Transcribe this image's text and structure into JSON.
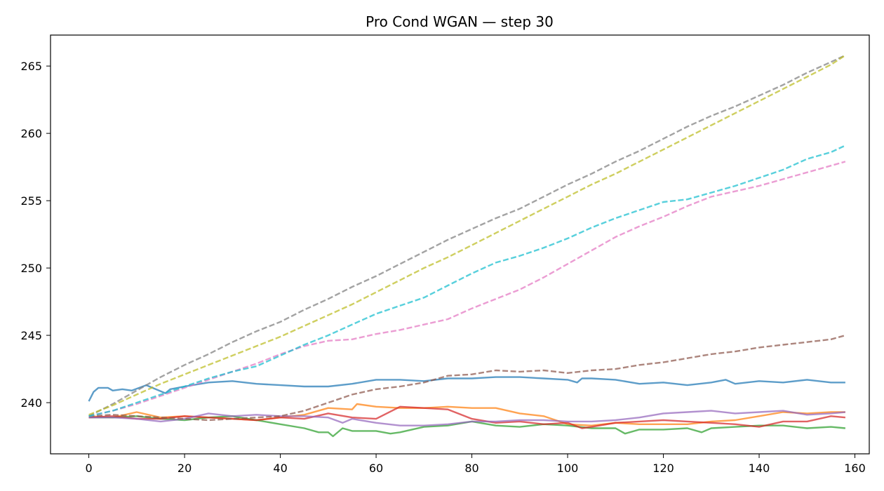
{
  "chart_data": {
    "type": "line",
    "title": "Pro Cond WGAN — step 30",
    "xlabel": "",
    "ylabel": "",
    "xlim": [
      -8,
      163
    ],
    "ylim": [
      236.2,
      267.3
    ],
    "xticks": [
      0,
      20,
      40,
      60,
      80,
      100,
      120,
      140,
      160
    ],
    "yticks": [
      240,
      245,
      250,
      255,
      260,
      265
    ],
    "grid": false,
    "legend": "none",
    "series": [
      {
        "color": "#1f77b4",
        "dash": false,
        "x": [
          0,
          1,
          2,
          4,
          5,
          7,
          9,
          12,
          14,
          16,
          17,
          20,
          25,
          30,
          35,
          40,
          45,
          50,
          55,
          60,
          65,
          70,
          75,
          80,
          85,
          90,
          95,
          100,
          102,
          103,
          105,
          110,
          115,
          120,
          125,
          130,
          133,
          135,
          140,
          145,
          150,
          155,
          158
        ],
        "y": [
          240.1,
          240.8,
          241.1,
          241.1,
          240.9,
          241.0,
          240.9,
          241.3,
          241.0,
          240.7,
          241.0,
          241.2,
          241.5,
          241.6,
          241.4,
          241.3,
          241.2,
          241.2,
          241.4,
          241.7,
          241.7,
          241.6,
          241.8,
          241.8,
          241.9,
          241.9,
          241.8,
          241.7,
          241.5,
          241.8,
          241.8,
          241.7,
          241.4,
          241.5,
          241.3,
          241.5,
          241.7,
          241.4,
          241.6,
          241.5,
          241.7,
          241.5,
          241.5
        ]
      },
      {
        "color": "#ff7f0e",
        "dash": false,
        "x": [
          0,
          5,
          10,
          15,
          20,
          25,
          30,
          35,
          40,
          45,
          50,
          55,
          56,
          60,
          65,
          70,
          75,
          80,
          85,
          90,
          95,
          100,
          105,
          110,
          115,
          120,
          125,
          130,
          135,
          140,
          145,
          150,
          155,
          158
        ],
        "y": [
          239.0,
          238.9,
          239.3,
          238.9,
          239.0,
          238.9,
          238.8,
          238.7,
          238.9,
          239.1,
          239.6,
          239.5,
          239.9,
          239.7,
          239.6,
          239.6,
          239.7,
          239.6,
          239.6,
          239.2,
          239.0,
          238.4,
          238.3,
          238.5,
          238.4,
          238.4,
          238.4,
          238.6,
          238.7,
          239.0,
          239.3,
          239.2,
          239.3,
          239.3
        ]
      },
      {
        "color": "#2ca02c",
        "dash": false,
        "x": [
          0,
          5,
          10,
          15,
          20,
          25,
          30,
          35,
          40,
          45,
          48,
          50,
          51,
          53,
          55,
          60,
          63,
          65,
          70,
          75,
          80,
          85,
          90,
          95,
          100,
          105,
          110,
          112,
          115,
          120,
          125,
          128,
          130,
          135,
          140,
          145,
          150,
          155,
          158
        ],
        "y": [
          238.9,
          238.9,
          239.0,
          238.8,
          238.7,
          238.9,
          239.0,
          238.7,
          238.4,
          238.1,
          237.8,
          237.8,
          237.5,
          238.1,
          237.9,
          237.9,
          237.7,
          237.8,
          238.2,
          238.3,
          238.6,
          238.3,
          238.2,
          238.4,
          238.3,
          238.1,
          238.1,
          237.7,
          238.0,
          238.0,
          238.1,
          237.8,
          238.1,
          238.2,
          238.3,
          238.3,
          238.1,
          238.2,
          238.1
        ]
      },
      {
        "color": "#d62728",
        "dash": false,
        "x": [
          0,
          5,
          10,
          15,
          20,
          25,
          30,
          35,
          40,
          45,
          50,
          55,
          60,
          65,
          70,
          75,
          80,
          85,
          90,
          95,
          100,
          103,
          105,
          110,
          115,
          120,
          125,
          130,
          135,
          140,
          145,
          150,
          155,
          158
        ],
        "y": [
          238.9,
          239.0,
          238.8,
          238.8,
          239.0,
          238.9,
          238.8,
          238.7,
          238.9,
          238.8,
          239.2,
          238.9,
          238.8,
          239.7,
          239.6,
          239.5,
          238.8,
          238.5,
          238.6,
          238.4,
          238.5,
          238.1,
          238.2,
          238.5,
          238.6,
          238.7,
          238.6,
          238.5,
          238.4,
          238.2,
          238.6,
          238.6,
          239.0,
          238.9
        ]
      },
      {
        "color": "#9467bd",
        "dash": false,
        "x": [
          0,
          5,
          10,
          15,
          20,
          25,
          30,
          35,
          40,
          45,
          50,
          53,
          55,
          60,
          65,
          70,
          75,
          80,
          85,
          90,
          95,
          100,
          105,
          110,
          115,
          120,
          125,
          130,
          135,
          140,
          145,
          150,
          155,
          158
        ],
        "y": [
          238.9,
          238.9,
          238.8,
          238.6,
          238.8,
          239.2,
          239.0,
          239.1,
          239.0,
          239.0,
          238.9,
          238.5,
          238.8,
          238.5,
          238.3,
          238.3,
          238.4,
          238.6,
          238.6,
          238.7,
          238.7,
          238.6,
          238.6,
          238.7,
          238.9,
          239.2,
          239.3,
          239.4,
          239.2,
          239.3,
          239.4,
          239.1,
          239.2,
          239.3
        ]
      },
      {
        "color": "#8c564b",
        "dash": true,
        "x": [
          0,
          5,
          10,
          15,
          20,
          25,
          30,
          35,
          40,
          45,
          50,
          55,
          60,
          65,
          70,
          75,
          80,
          85,
          90,
          95,
          100,
          105,
          110,
          115,
          120,
          125,
          130,
          135,
          140,
          145,
          150,
          155,
          158
        ],
        "y": [
          239.0,
          239.1,
          239.0,
          238.9,
          238.8,
          238.7,
          238.8,
          238.9,
          239.0,
          239.4,
          240.0,
          240.6,
          241.0,
          241.2,
          241.5,
          242.0,
          242.1,
          242.4,
          242.3,
          242.4,
          242.2,
          242.4,
          242.5,
          242.8,
          243.0,
          243.3,
          243.6,
          243.8,
          244.1,
          244.3,
          244.5,
          244.7,
          245.0
        ]
      },
      {
        "color": "#e377c2",
        "dash": true,
        "x": [
          0,
          5,
          10,
          15,
          20,
          25,
          30,
          35,
          40,
          45,
          50,
          55,
          60,
          65,
          70,
          75,
          80,
          85,
          90,
          95,
          100,
          105,
          110,
          115,
          120,
          125,
          130,
          135,
          140,
          145,
          150,
          155,
          158
        ],
        "y": [
          239.0,
          239.4,
          239.9,
          240.5,
          241.1,
          241.7,
          242.3,
          242.9,
          243.6,
          244.2,
          244.6,
          244.7,
          245.1,
          245.4,
          245.8,
          246.2,
          247.0,
          247.7,
          248.4,
          249.3,
          250.3,
          251.3,
          252.3,
          253.1,
          253.8,
          254.6,
          255.3,
          255.7,
          256.1,
          256.6,
          257.1,
          257.6,
          257.9
        ]
      },
      {
        "color": "#7f7f7f",
        "dash": true,
        "x": [
          0,
          5,
          10,
          15,
          20,
          25,
          30,
          35,
          40,
          45,
          50,
          55,
          60,
          65,
          70,
          75,
          80,
          85,
          90,
          95,
          100,
          105,
          110,
          115,
          120,
          125,
          130,
          135,
          140,
          145,
          150,
          155,
          158
        ],
        "y": [
          239.0,
          239.9,
          240.9,
          241.9,
          242.8,
          243.6,
          244.5,
          245.3,
          246.0,
          246.9,
          247.7,
          248.6,
          249.4,
          250.3,
          251.2,
          252.1,
          252.9,
          253.7,
          254.4,
          255.3,
          256.2,
          257.0,
          257.9,
          258.7,
          259.6,
          260.5,
          261.3,
          262.0,
          262.8,
          263.6,
          264.5,
          265.3,
          265.8
        ]
      },
      {
        "color": "#bcbd22",
        "dash": true,
        "x": [
          0,
          5,
          10,
          15,
          20,
          25,
          30,
          35,
          40,
          45,
          50,
          55,
          60,
          65,
          70,
          75,
          80,
          85,
          90,
          95,
          100,
          105,
          110,
          115,
          120,
          125,
          130,
          135,
          140,
          145,
          150,
          155,
          158
        ],
        "y": [
          239.1,
          239.8,
          240.6,
          241.4,
          242.1,
          242.8,
          243.5,
          244.2,
          244.9,
          245.7,
          246.5,
          247.3,
          248.2,
          249.1,
          250.0,
          250.8,
          251.7,
          252.6,
          253.5,
          254.4,
          255.3,
          256.2,
          257.0,
          257.9,
          258.8,
          259.7,
          260.6,
          261.5,
          262.4,
          263.3,
          264.2,
          265.1,
          265.8
        ]
      },
      {
        "color": "#17becf",
        "dash": true,
        "x": [
          0,
          5,
          10,
          15,
          20,
          25,
          30,
          35,
          40,
          45,
          50,
          55,
          60,
          65,
          70,
          75,
          80,
          85,
          90,
          95,
          100,
          105,
          110,
          115,
          120,
          125,
          130,
          135,
          140,
          145,
          150,
          155,
          158
        ],
        "y": [
          239.0,
          239.4,
          240.0,
          240.6,
          241.2,
          241.8,
          242.3,
          242.7,
          243.5,
          244.3,
          245.0,
          245.8,
          246.6,
          247.2,
          247.8,
          248.7,
          249.6,
          250.4,
          250.9,
          251.5,
          252.2,
          253.0,
          253.7,
          254.3,
          254.9,
          255.1,
          255.6,
          256.1,
          256.7,
          257.3,
          258.1,
          258.6,
          259.1
        ]
      }
    ]
  }
}
